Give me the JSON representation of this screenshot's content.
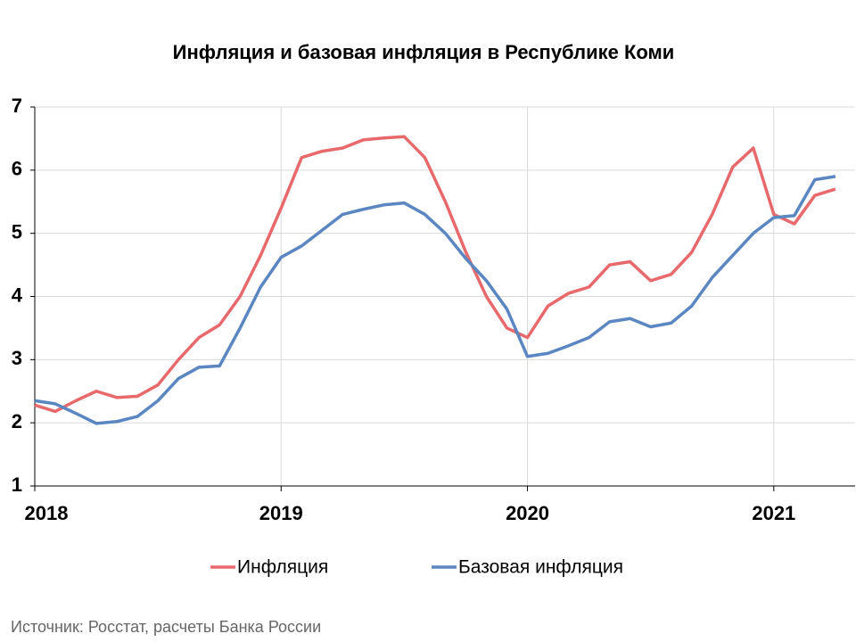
{
  "chart_data": {
    "type": "line",
    "title": "Инфляция и базовая инфляция в Республике Коми",
    "source": "Источник: Росстат, расчеты Банка России",
    "x": [
      2018,
      2018.0833,
      2018.1667,
      2018.25,
      2018.3333,
      2018.4167,
      2018.5,
      2018.5833,
      2018.6667,
      2018.75,
      2018.8333,
      2018.9167,
      2019,
      2019.0833,
      2019.1667,
      2019.25,
      2019.3333,
      2019.4167,
      2019.5,
      2019.5833,
      2019.6667,
      2019.75,
      2019.8333,
      2019.9167,
      2020,
      2020.0833,
      2020.1667,
      2020.25,
      2020.3333,
      2020.4167,
      2020.5,
      2020.5833,
      2020.6667,
      2020.75,
      2020.8333,
      2020.9167,
      2021,
      2021.0833,
      2021.1667,
      2021.25
    ],
    "series": [
      {
        "name": "Инфляция",
        "color": "#e8696b",
        "values": [
          2.28,
          2.18,
          2.35,
          2.5,
          2.4,
          2.42,
          2.6,
          3.0,
          3.35,
          3.55,
          4.0,
          4.65,
          5.4,
          6.2,
          6.3,
          6.35,
          6.48,
          6.51,
          6.53,
          6.2,
          5.5,
          4.7,
          4.0,
          3.5,
          3.35,
          3.85,
          4.05,
          4.15,
          4.5,
          4.55,
          4.25,
          4.35,
          4.7,
          5.3,
          6.05,
          6.35,
          5.3,
          5.15,
          5.6,
          5.7
        ]
      },
      {
        "name": "Базовая инфляция",
        "color": "#5a86c2",
        "values": [
          2.35,
          2.3,
          2.15,
          1.99,
          2.02,
          2.1,
          2.35,
          2.7,
          2.88,
          2.9,
          3.5,
          4.15,
          4.62,
          4.8,
          5.05,
          5.3,
          5.38,
          5.45,
          5.48,
          5.3,
          5.0,
          4.6,
          4.25,
          3.8,
          3.05,
          3.1,
          3.22,
          3.35,
          3.6,
          3.65,
          3.52,
          3.58,
          3.85,
          4.3,
          4.65,
          5.0,
          5.25,
          5.28,
          5.85,
          5.9
        ]
      }
    ],
    "xlim": [
      2018,
      2021.33
    ],
    "xticks": [
      2018,
      2019,
      2020,
      2021
    ],
    "ylim": [
      1,
      7
    ],
    "yticks": [
      1,
      2,
      3,
      4,
      5,
      6,
      7
    ],
    "grid": true,
    "legend": "bottom"
  }
}
